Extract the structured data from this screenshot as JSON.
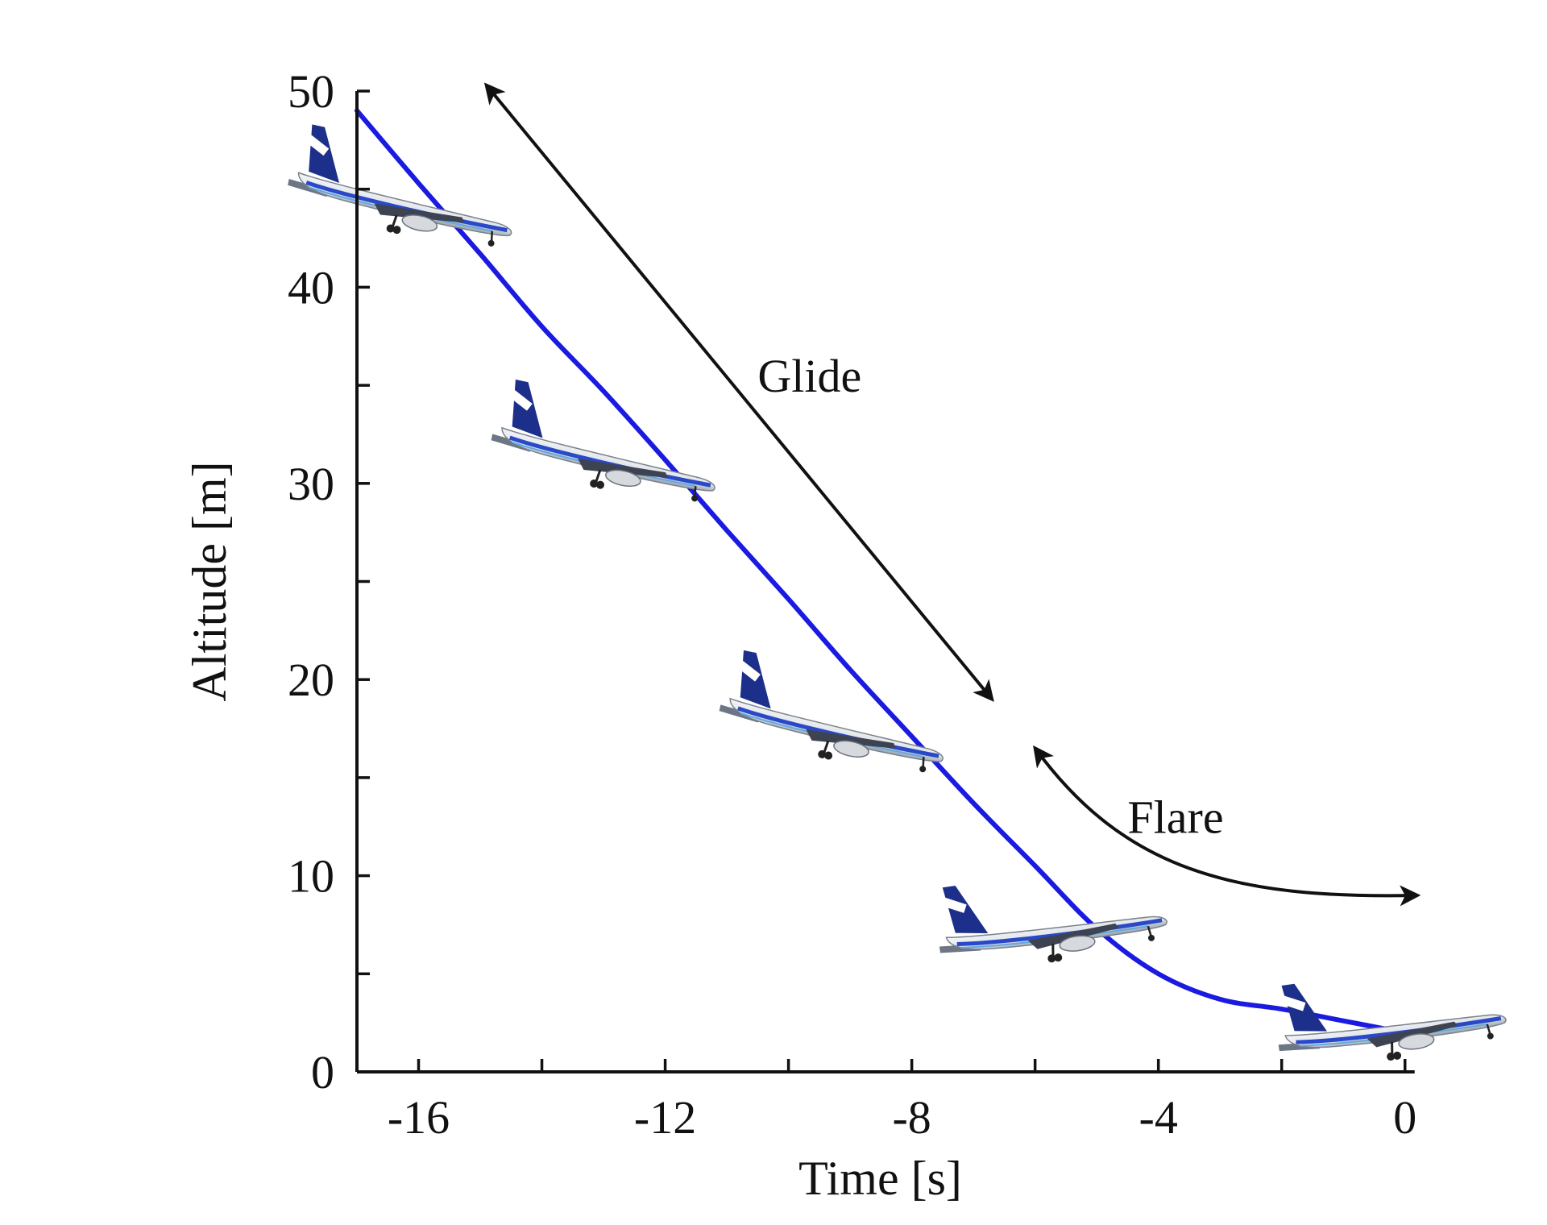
{
  "chart_data": {
    "type": "line",
    "title": "",
    "xlabel": "Time [s]",
    "ylabel": "Altitude [m]",
    "xlim": [
      -17,
      0.5
    ],
    "ylim": [
      0,
      50
    ],
    "x_ticks": [
      {
        "value": -16,
        "label": "-16"
      },
      {
        "value": -14,
        "label": ""
      },
      {
        "value": -12,
        "label": "-12"
      },
      {
        "value": -10,
        "label": ""
      },
      {
        "value": -8,
        "label": "-8"
      },
      {
        "value": -6,
        "label": ""
      },
      {
        "value": -4,
        "label": "-4"
      },
      {
        "value": -2,
        "label": ""
      },
      {
        "value": 0,
        "label": "0"
      }
    ],
    "y_ticks": [
      {
        "value": 0,
        "label": "0"
      },
      {
        "value": 5,
        "label": ""
      },
      {
        "value": 10,
        "label": "10"
      },
      {
        "value": 15,
        "label": ""
      },
      {
        "value": 20,
        "label": "20"
      },
      {
        "value": 25,
        "label": ""
      },
      {
        "value": 30,
        "label": "30"
      },
      {
        "value": 35,
        "label": ""
      },
      {
        "value": 40,
        "label": "40"
      },
      {
        "value": 45,
        "label": ""
      },
      {
        "value": 50,
        "label": "50"
      }
    ],
    "grid": false,
    "series": [
      {
        "color": "#1a1ae0",
        "x": [
          -17,
          -16,
          -15,
          -14,
          -13,
          -12,
          -11,
          -10,
          -9,
          -8,
          -7,
          -6,
          -5,
          -4,
          -3,
          -2,
          -1,
          0
        ],
        "y": [
          49,
          45.3,
          41.7,
          38.0,
          34.7,
          31.2,
          27.6,
          24.1,
          20.5,
          17.1,
          13.7,
          10.5,
          7.3,
          5.0,
          3.7,
          3.2,
          2.6,
          2.0
        ]
      }
    ],
    "annotations": [
      {
        "label": "Glide",
        "x": -10.5,
        "y": 35.5,
        "arrow_from": [
          -6.7,
          19.0
        ],
        "arrow_to": [
          -14.9,
          50.3
        ]
      },
      {
        "label": "Flare",
        "x": -4.5,
        "y": 13.0,
        "arrow_from": [
          -6.0,
          16.5
        ],
        "arrow_to": [
          0.2,
          9.0
        ]
      }
    ],
    "aircraft_images": [
      {
        "x": -16.2,
        "y": 44.0,
        "attitude": "nose-down"
      },
      {
        "x": -12.9,
        "y": 31.0,
        "attitude": "nose-down"
      },
      {
        "x": -9.2,
        "y": 17.2,
        "attitude": "nose-down"
      },
      {
        "x": -5.6,
        "y": 7.0,
        "attitude": "nose-up"
      },
      {
        "x": -0.1,
        "y": 2.0,
        "attitude": "nose-up"
      }
    ]
  }
}
